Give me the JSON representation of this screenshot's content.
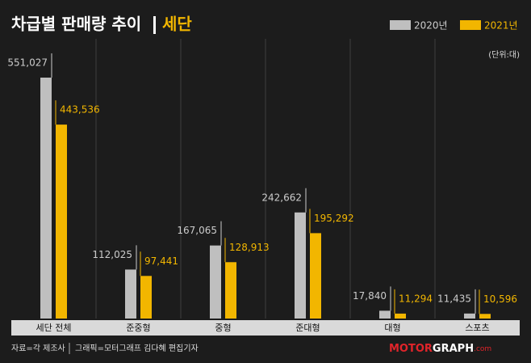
{
  "chart_data": {
    "type": "bar",
    "title": "차급별 판매량 추이",
    "subtitle": "세단",
    "unit": "(단위:대)",
    "categories": [
      "세단 전체",
      "준중형",
      "중형",
      "준대형",
      "대형",
      "스포츠"
    ],
    "series": [
      {
        "name": "2020년",
        "color": "#bfbfbf",
        "values": [
          551027,
          112025,
          167065,
          242662,
          17840,
          11435
        ],
        "value_labels": [
          "551,027",
          "112,025",
          "167,065",
          "242,662",
          "17,840",
          "11,435"
        ]
      },
      {
        "name": "2021년",
        "color": "#f2b600",
        "values": [
          443536,
          97441,
          128913,
          195292,
          11294,
          10596
        ],
        "value_labels": [
          "443,536",
          "97,441",
          "128,913",
          "195,292",
          "11,294",
          "10,596"
        ]
      }
    ],
    "source": "자료=각 제조사",
    "credit": "그래픽=모터그래프 김다혜 편집기자",
    "logo_a": "MOTOR",
    "logo_b": "GRAPH",
    "logo_c": ".com"
  }
}
